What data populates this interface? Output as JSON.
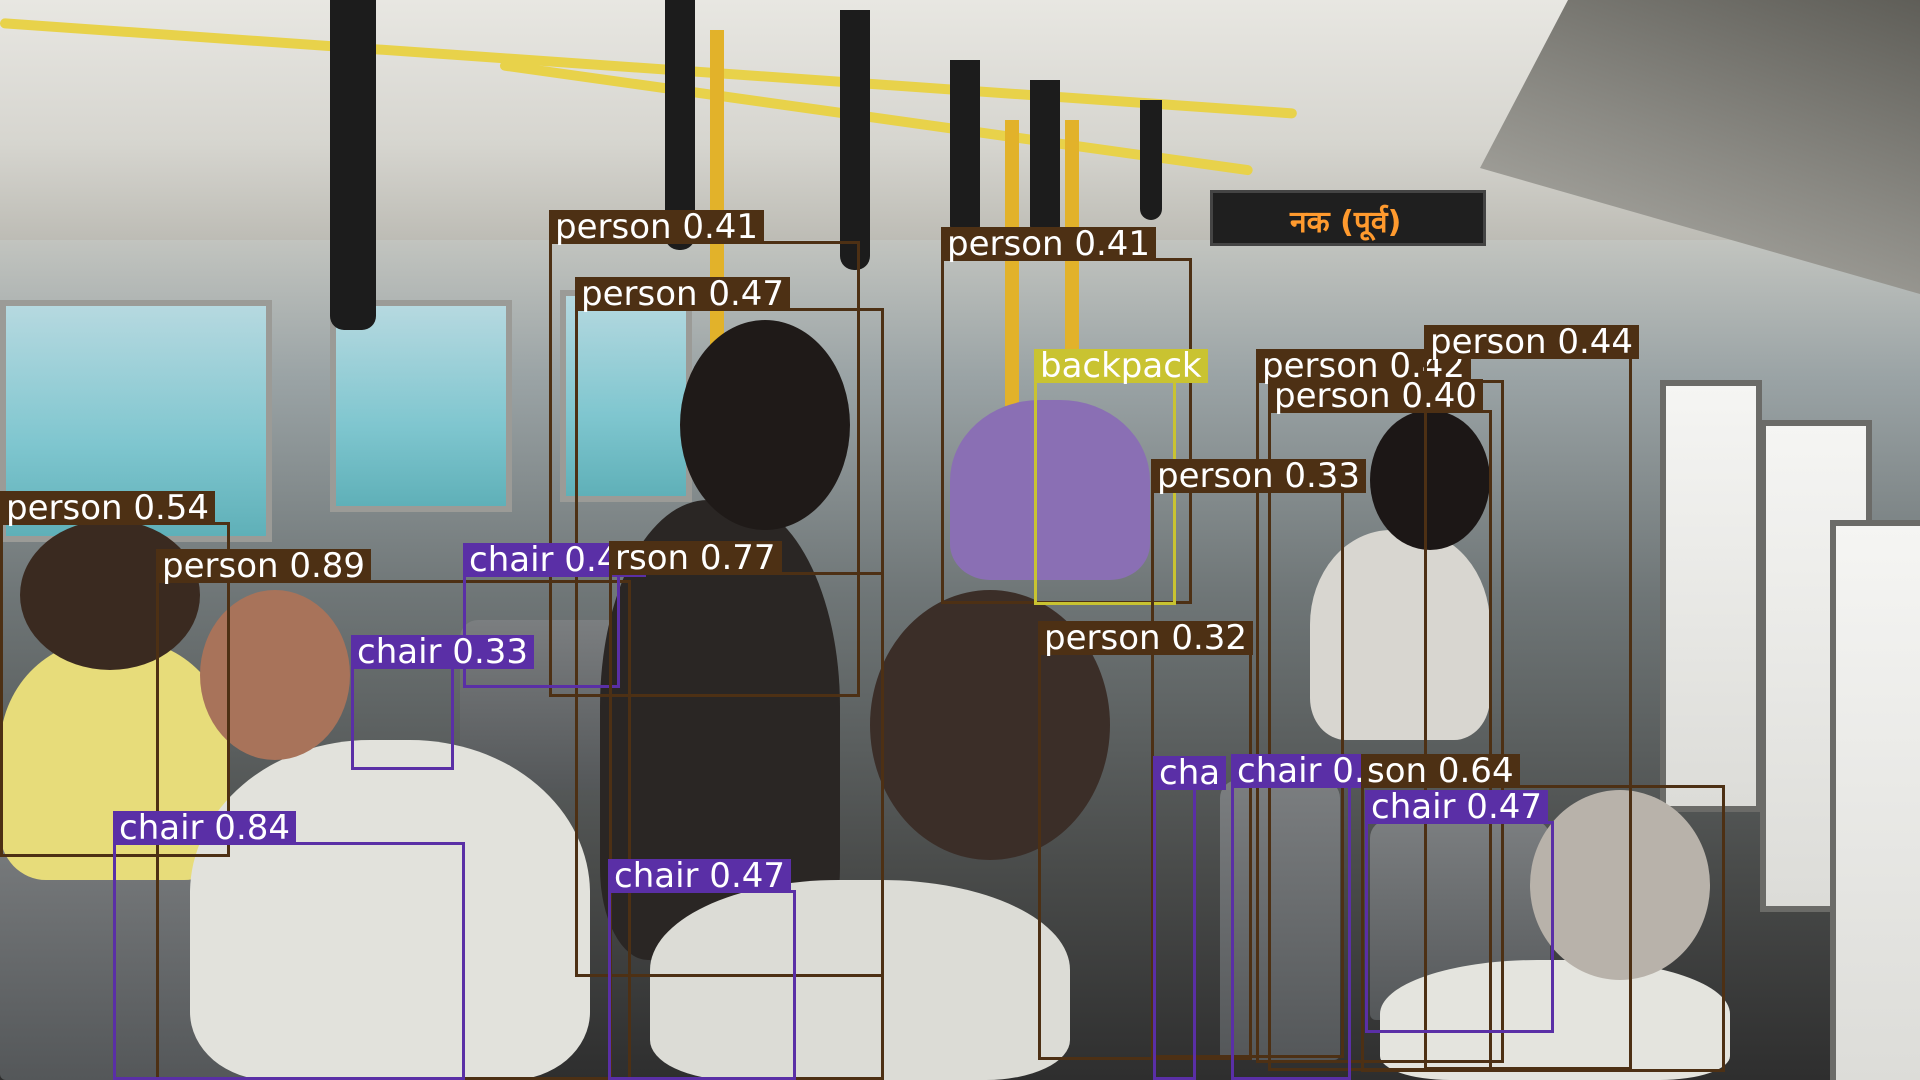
{
  "sign": {
    "text": "नक (पूर्व)"
  },
  "colors": {
    "person": "#4d3014",
    "chair": "#5a2fa6",
    "backpack": "#c9c331"
  },
  "detections": [
    {
      "label": "person 0.41"
    },
    {
      "label": "person 0.47"
    },
    {
      "label": "person 0.41"
    },
    {
      "label": "backpack"
    },
    {
      "label": "person 0.42"
    },
    {
      "label": "person 0.44"
    },
    {
      "label": "person 0.40"
    },
    {
      "label": "person 0.33"
    },
    {
      "label": "person 0.54"
    },
    {
      "label": "person 0.89"
    },
    {
      "label": "chair 0.47"
    },
    {
      "label": "rson 0.77"
    },
    {
      "label": "chair 0.33"
    },
    {
      "label": "person 0.32"
    },
    {
      "label": "chair 0.84"
    },
    {
      "label": "chair 0.47"
    },
    {
      "label": "cha"
    },
    {
      "label": "chair 0.40"
    },
    {
      "label": "son 0.64"
    },
    {
      "label": "chair 0.47"
    }
  ]
}
